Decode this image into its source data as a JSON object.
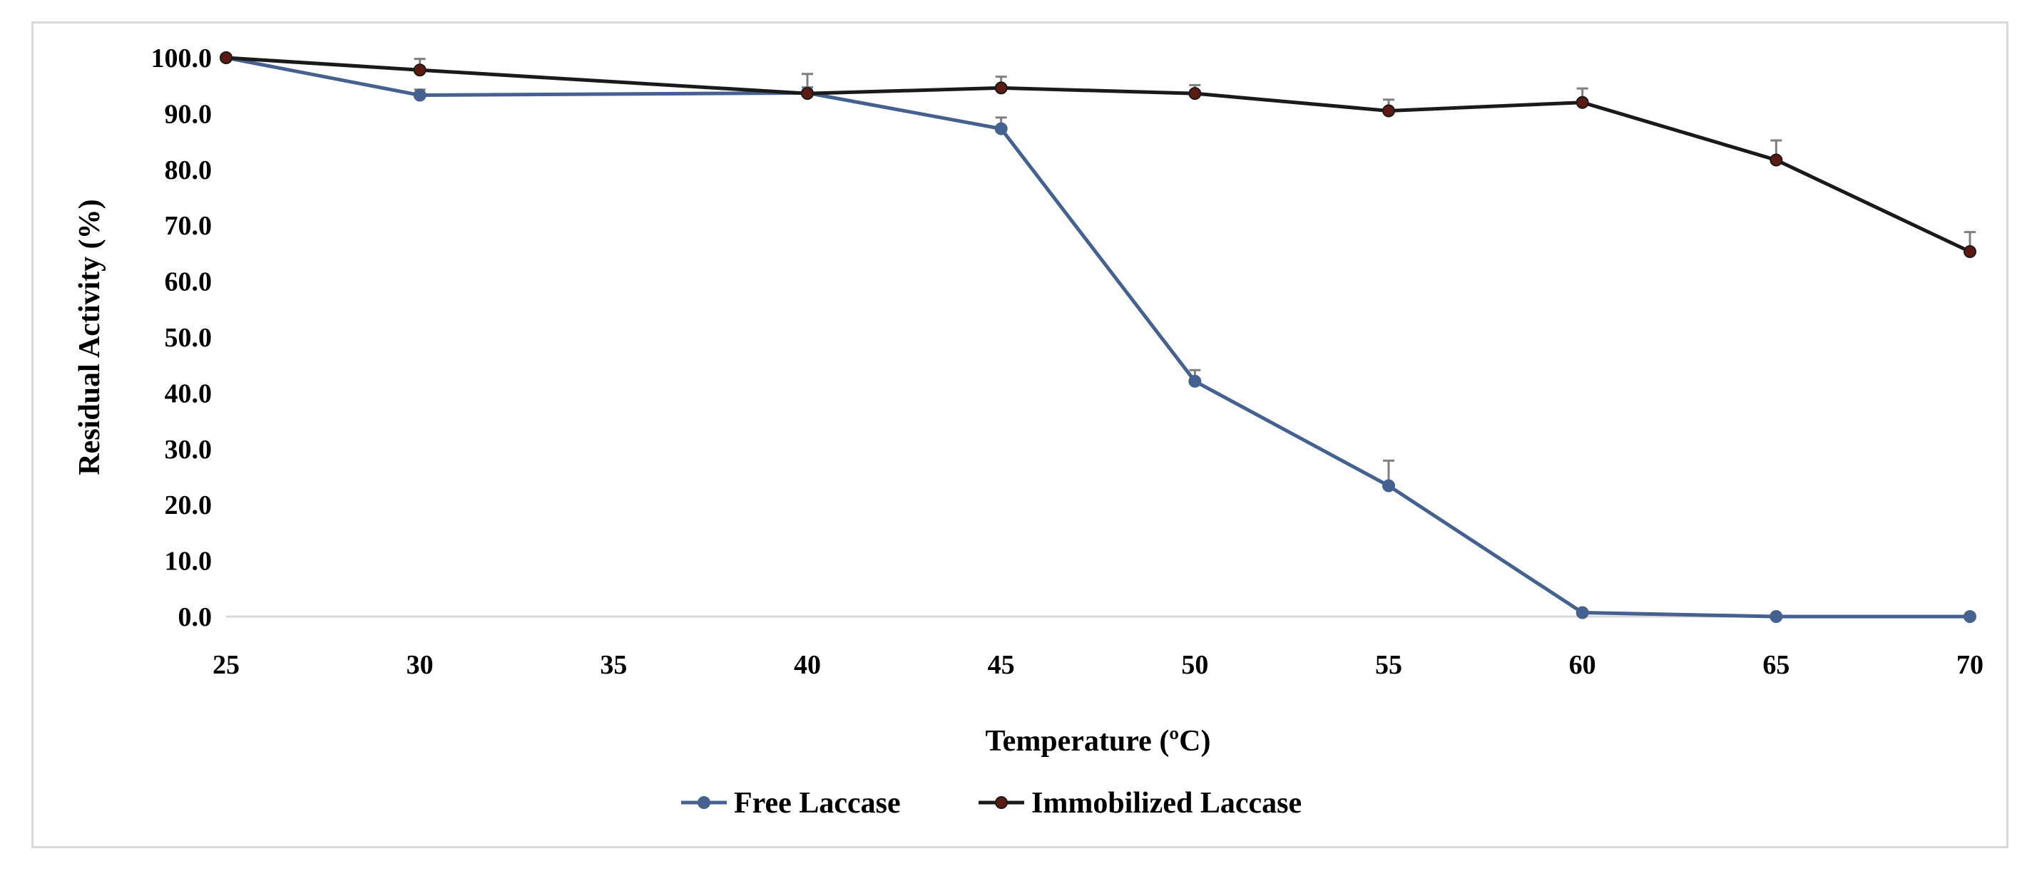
{
  "chart_data": {
    "type": "line",
    "title": "",
    "xlabel": "Temperature (ºC)",
    "ylabel": "Residual Activity (%)",
    "categories": [
      "25",
      "30",
      "35",
      "40",
      "45",
      "50",
      "55",
      "60",
      "65",
      "70"
    ],
    "x_tick_labels": [
      "25",
      "30",
      "35",
      "40",
      "45",
      "50",
      "55",
      "60",
      "65",
      "70"
    ],
    "y_tick_labels": [
      "0.0",
      "10.0",
      "20.0",
      "30.0",
      "40.0",
      "50.0",
      "60.0",
      "70.0",
      "80.0",
      "90.0",
      "100.0"
    ],
    "ylim": [
      0,
      100
    ],
    "y_step": 10,
    "grid": false,
    "legend_position": "bottom-center",
    "series": [
      {
        "name": "Free Laccase",
        "color": "#44618f",
        "x": [
          "25",
          "30",
          "40",
          "45",
          "50",
          "55",
          "60",
          "65",
          "70"
        ],
        "values": [
          100.0,
          93.3,
          93.7,
          87.3,
          42.1,
          23.4,
          0.7,
          0.0,
          0.0
        ],
        "errors": [
          0.0,
          1.0,
          1.0,
          2.0,
          2.0,
          4.5,
          0.3,
          0.0,
          0.0
        ]
      },
      {
        "name": "Immobilized Laccase",
        "color": "#1a1a1a",
        "marker_color": "#5c1a12",
        "x": [
          "25",
          "30",
          "40",
          "45",
          "50",
          "55",
          "60",
          "65",
          "70"
        ],
        "values": [
          100.0,
          97.8,
          93.6,
          94.6,
          93.6,
          90.5,
          92.0,
          81.7,
          65.3
        ],
        "errors": [
          0.5,
          2.0,
          3.5,
          2.0,
          1.5,
          2.0,
          2.5,
          3.5,
          3.5
        ]
      }
    ]
  }
}
